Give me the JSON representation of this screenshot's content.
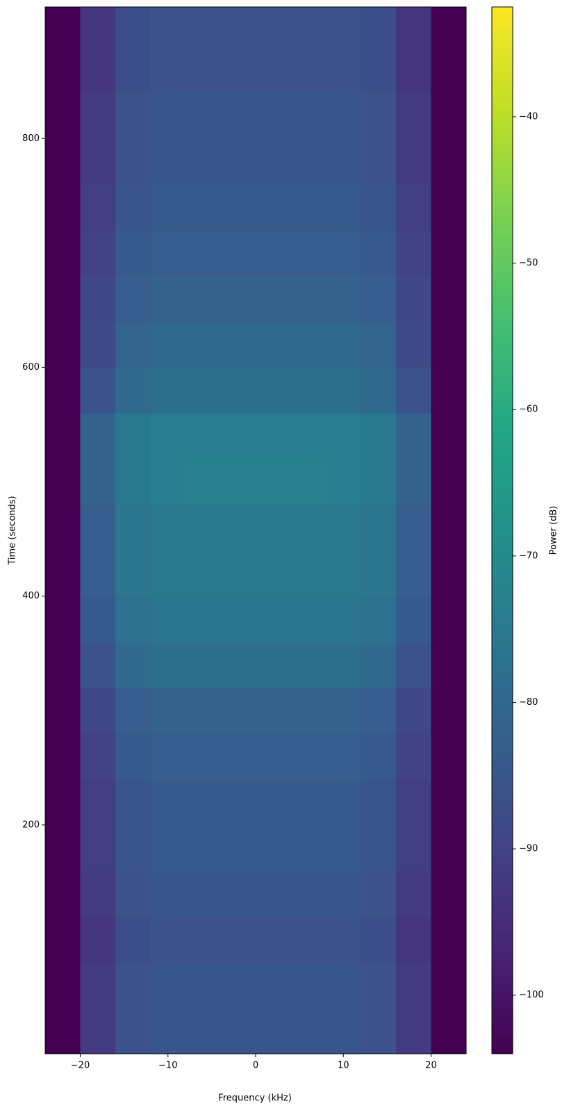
{
  "chart_data": {
    "type": "heatmap",
    "xlabel": "Frequency (kHz)",
    "ylabel": "Time (seconds)",
    "colorbar_label": "Power (dB)",
    "colormap": "viridis",
    "x": [
      -22,
      -18,
      -14,
      -10,
      -6,
      -2,
      2,
      6,
      10,
      14,
      18,
      22
    ],
    "y": [
      20,
      60,
      100,
      140,
      180,
      220,
      260,
      300,
      340,
      380,
      420,
      460,
      500,
      540,
      580,
      620,
      660,
      700,
      740,
      780,
      820,
      860,
      900
    ],
    "values": [
      [
        -104,
        -92,
        -86,
        -85,
        -85,
        -85,
        -85,
        -85,
        -85,
        -86,
        -92,
        -104
      ],
      [
        -104,
        -92,
        -86,
        -85,
        -85,
        -85,
        -85,
        -85,
        -85,
        -86,
        -92,
        -104
      ],
      [
        -104,
        -93,
        -87,
        -86,
        -86,
        -86,
        -86,
        -86,
        -86,
        -87,
        -93,
        -104
      ],
      [
        -104,
        -92,
        -86,
        -85,
        -85,
        -85,
        -85,
        -85,
        -85,
        -86,
        -92,
        -104
      ],
      [
        -104,
        -91,
        -85,
        -84,
        -84,
        -84,
        -84,
        -84,
        -84,
        -85,
        -91,
        -104
      ],
      [
        -104,
        -91,
        -85,
        -84,
        -84,
        -84,
        -84,
        -84,
        -84,
        -85,
        -91,
        -104
      ],
      [
        -104,
        -90,
        -84,
        -83,
        -83,
        -83,
        -83,
        -83,
        -83,
        -84,
        -90,
        -104
      ],
      [
        -104,
        -89,
        -83,
        -82,
        -82,
        -82,
        -82,
        -82,
        -82,
        -83,
        -89,
        -104
      ],
      [
        -104,
        -86,
        -79,
        -78,
        -78,
        -78,
        -78,
        -78,
        -78,
        -79,
        -86,
        -104
      ],
      [
        -104,
        -84,
        -77,
        -76,
        -76,
        -76,
        -76,
        -76,
        -76,
        -77,
        -84,
        -104
      ],
      [
        -104,
        -83,
        -76,
        -75,
        -75,
        -75,
        -75,
        -75,
        -75,
        -76,
        -83,
        -104
      ],
      [
        -104,
        -83,
        -76,
        -75,
        -75,
        -75,
        -75,
        -75,
        -75,
        -76,
        -83,
        -104
      ],
      [
        -104,
        -82,
        -75,
        -74,
        -73,
        -73,
        -73,
        -73,
        -74,
        -75,
        -82,
        -104
      ],
      [
        -104,
        -82,
        -75,
        -74,
        -74,
        -74,
        -74,
        -74,
        -74,
        -75,
        -82,
        -104
      ],
      [
        -104,
        -86,
        -79,
        -78,
        -78,
        -78,
        -78,
        -78,
        -78,
        -79,
        -86,
        -104
      ],
      [
        -104,
        -88,
        -81,
        -80,
        -80,
        -80,
        -80,
        -80,
        -80,
        -81,
        -88,
        -104
      ],
      [
        -104,
        -89,
        -83,
        -82,
        -82,
        -82,
        -82,
        -82,
        -82,
        -83,
        -89,
        -104
      ],
      [
        -104,
        -90,
        -84,
        -83,
        -83,
        -83,
        -83,
        -83,
        -83,
        -84,
        -90,
        -104
      ],
      [
        -104,
        -91,
        -85,
        -84,
        -84,
        -84,
        -84,
        -84,
        -84,
        -85,
        -91,
        -104
      ],
      [
        -104,
        -92,
        -86,
        -85,
        -85,
        -85,
        -85,
        -85,
        -85,
        -86,
        -92,
        -104
      ],
      [
        -104,
        -92,
        -86,
        -85,
        -85,
        -85,
        -85,
        -85,
        -85,
        -86,
        -92,
        -104
      ],
      [
        -104,
        -93,
        -87,
        -86,
        -86,
        -86,
        -86,
        -86,
        -86,
        -87,
        -93,
        -104
      ],
      [
        -104,
        -93,
        -87,
        -86,
        -86,
        -86,
        -86,
        -86,
        -86,
        -87,
        -93,
        -104
      ]
    ],
    "xlim": [
      -24,
      24
    ],
    "ylim": [
      0,
      915
    ],
    "clim": [
      -104,
      -32.5
    ],
    "xticks": [
      {
        "value": -20,
        "label": "−20"
      },
      {
        "value": -10,
        "label": "−10"
      },
      0,
      10,
      20
    ],
    "yticks": [
      200,
      400,
      600,
      800
    ],
    "cticks": [
      {
        "value": -100,
        "label": "−100"
      },
      {
        "value": -90,
        "label": "−90"
      },
      {
        "value": -80,
        "label": "−80"
      },
      {
        "value": -70,
        "label": "−70"
      },
      {
        "value": -60,
        "label": "−60"
      },
      {
        "value": -50,
        "label": "−50"
      },
      {
        "value": -40,
        "label": "−40"
      }
    ]
  }
}
